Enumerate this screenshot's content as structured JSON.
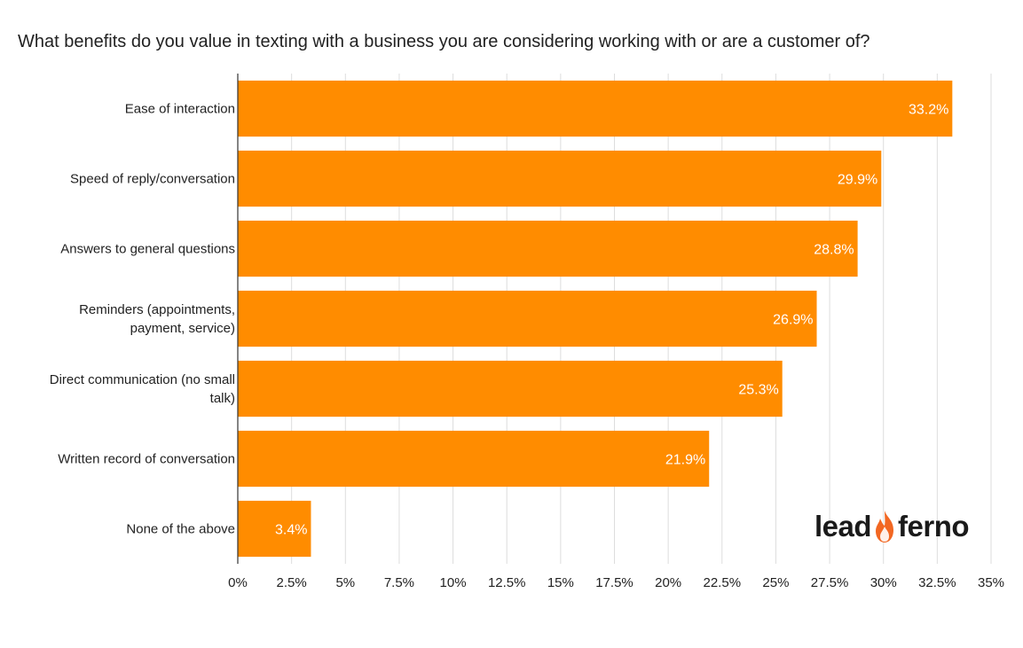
{
  "chart_data": {
    "type": "bar",
    "orientation": "horizontal",
    "title": "What benefits do you value in texting with a business you are considering working with or are a customer of?",
    "categories": [
      "Ease of interaction",
      "Speed of reply/conversation",
      "Answers to general questions",
      "Reminders (appointments, payment, service)",
      "Direct communication (no small talk)",
      "Written record of conversation",
      "None of the above"
    ],
    "category_lines": [
      [
        "Ease of interaction"
      ],
      [
        "Speed of reply/conversation"
      ],
      [
        "Answers to general questions"
      ],
      [
        "Reminders (appointments,",
        "payment, service)"
      ],
      [
        "Direct communication (no small",
        "talk)"
      ],
      [
        "Written record of conversation"
      ],
      [
        "None of the above"
      ]
    ],
    "values": [
      33.2,
      29.9,
      28.8,
      26.9,
      25.3,
      21.9,
      3.4
    ],
    "data_labels": [
      "33.2%",
      "29.9%",
      "28.8%",
      "26.9%",
      "25.3%",
      "21.9%",
      "3.4%"
    ],
    "xlim": [
      0,
      35
    ],
    "xticks": [
      0,
      2.5,
      5,
      7.5,
      10,
      12.5,
      15,
      17.5,
      20,
      22.5,
      25,
      27.5,
      30,
      32.5,
      35
    ],
    "xtick_labels": [
      "0%",
      "2.5%",
      "5%",
      "7.5%",
      "10%",
      "12.5%",
      "15%",
      "17.5%",
      "20%",
      "22.5%",
      "25%",
      "27.5%",
      "30%",
      "32.5%",
      "35%"
    ],
    "grid": true,
    "bar_color": "#FF8C00",
    "xlabel": "",
    "ylabel": ""
  },
  "logo": {
    "text_left": "lead",
    "text_right": "ferno",
    "flame_color": "#F26722"
  }
}
